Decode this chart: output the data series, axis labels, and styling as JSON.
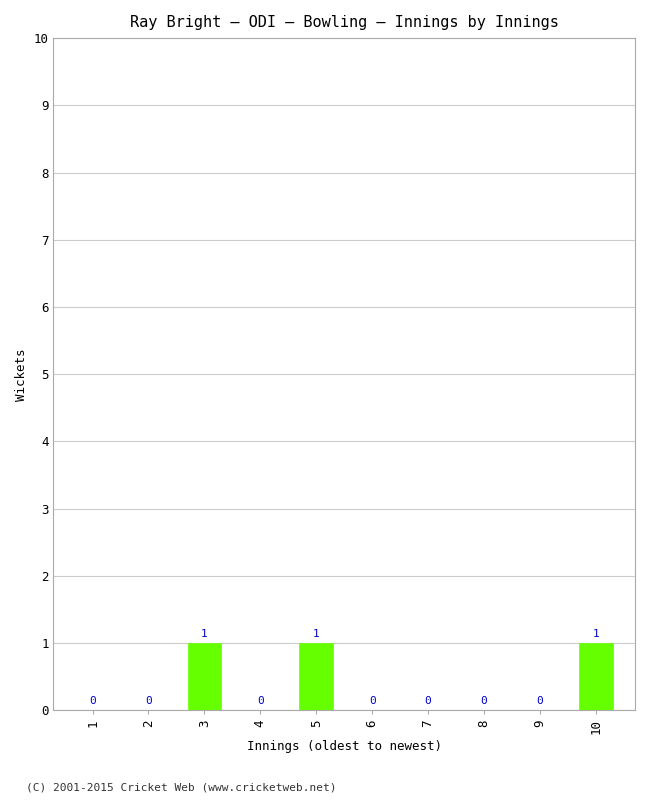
{
  "title": "Ray Bright – ODI – Bowling – Innings by Innings",
  "xlabel": "Innings (oldest to newest)",
  "ylabel": "Wickets",
  "categories": [
    "1",
    "2",
    "3",
    "4",
    "5",
    "6",
    "7",
    "8",
    "9",
    "10"
  ],
  "values": [
    0,
    0,
    1,
    0,
    1,
    0,
    0,
    0,
    0,
    1
  ],
  "bar_color": "#66ff00",
  "bar_edge_color": "#66ff00",
  "annotation_color": "#0000cc",
  "ylim": [
    0,
    10
  ],
  "yticks": [
    0,
    1,
    2,
    3,
    4,
    5,
    6,
    7,
    8,
    9,
    10
  ],
  "background_color": "#ffffff",
  "plot_bg_color": "#ffffff",
  "grid_color": "#cccccc",
  "title_fontsize": 11,
  "axis_label_fontsize": 9,
  "tick_fontsize": 9,
  "annotation_fontsize": 8,
  "footer": "(C) 2001-2015 Cricket Web (www.cricketweb.net)",
  "footer_fontsize": 8
}
